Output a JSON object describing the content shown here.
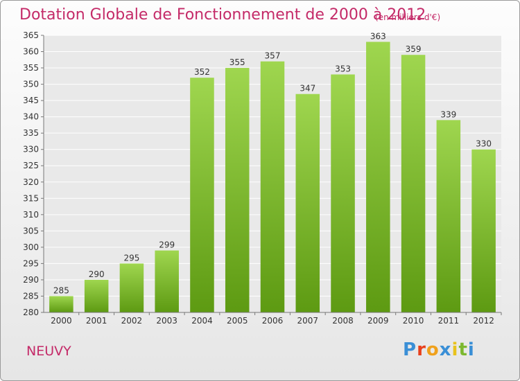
{
  "header": {
    "title": "Dotation Globale de Fonctionnement de 2000 à 2012",
    "subtitle": "(en milliers d'€)"
  },
  "footer": {
    "commune": "NEUVY",
    "logo_letters": [
      "P",
      "r",
      "o",
      "x",
      "i",
      "t",
      "i"
    ],
    "logo_colors": [
      "#3a8fd6",
      "#e8401c",
      "#f0a11c",
      "#3a8fd6",
      "#e8c21c",
      "#7cb82f",
      "#3a8fd6"
    ]
  },
  "colors": {
    "bar_light": "#9fd64f",
    "bar_dark": "#5d9a12",
    "title": "#c42a68",
    "grid": "#ffffff",
    "plot_bg": "#e9e9e9"
  },
  "chart_data": {
    "type": "bar",
    "categories": [
      "2000",
      "2001",
      "2002",
      "2003",
      "2004",
      "2005",
      "2006",
      "2007",
      "2008",
      "2009",
      "2010",
      "2011",
      "2012"
    ],
    "values": [
      285,
      290,
      295,
      299,
      352,
      355,
      357,
      347,
      353,
      363,
      359,
      339,
      330
    ],
    "title": "Dotation Globale de Fonctionnement de 2000 à 2012",
    "subtitle": "(en milliers d'€)",
    "ylim": [
      280,
      365
    ],
    "yticks": [
      280,
      285,
      290,
      295,
      300,
      305,
      310,
      315,
      320,
      325,
      330,
      335,
      340,
      345,
      350,
      355,
      360,
      365
    ],
    "grid": true
  }
}
